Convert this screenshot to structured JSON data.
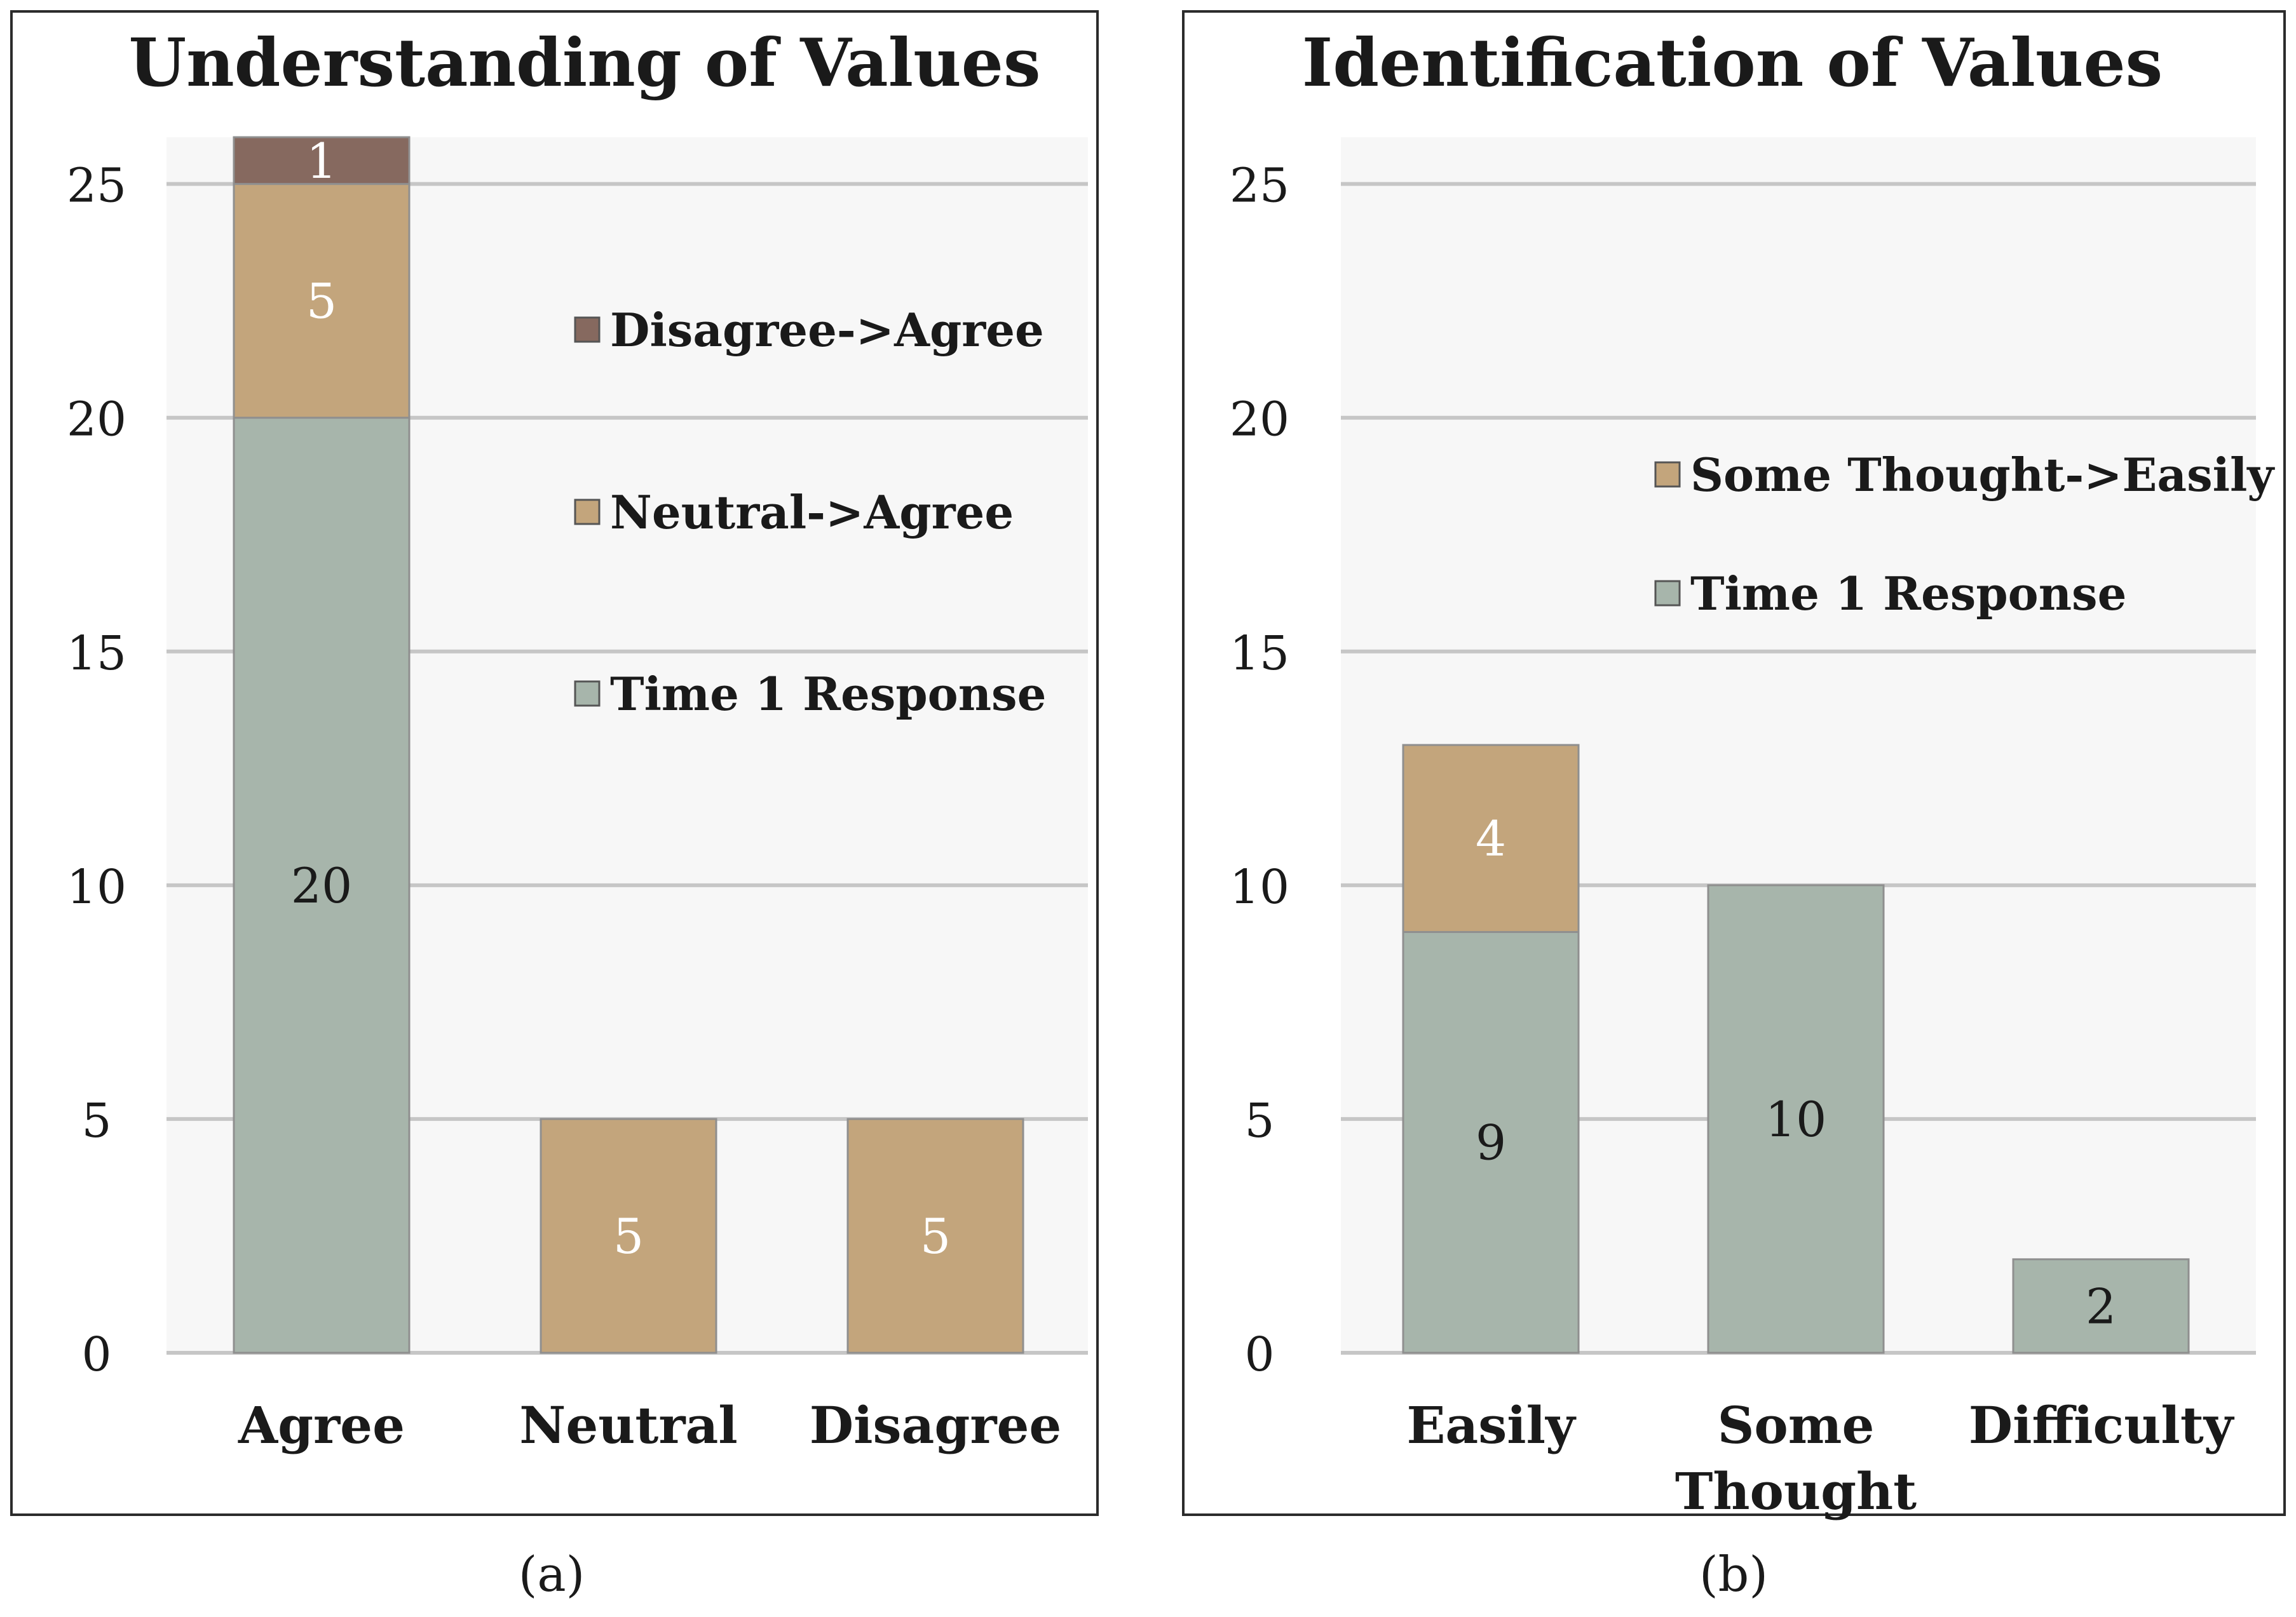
{
  "figure": {
    "panel_labels": [
      "(a)",
      "(b)"
    ]
  },
  "chart_data": [
    {
      "type": "bar",
      "stacked": true,
      "title": "Understanding of Values",
      "categories": [
        "Agree",
        "Neutral",
        "Disagree"
      ],
      "series": [
        {
          "name": "Time 1 Response",
          "values": [
            20,
            0,
            0
          ],
          "color": "#a7b5ab"
        },
        {
          "name": "Neutral->Agree",
          "values": [
            5,
            5,
            5
          ],
          "color": "#c3a57c"
        },
        {
          "name": "Disagree->Agree",
          "values": [
            1,
            0,
            0
          ],
          "color": "#86695f"
        }
      ],
      "legend_order": [
        "Disagree->Agree",
        "Neutral->Agree",
        "Time 1 Response"
      ],
      "legend_position": "right",
      "ylim": [
        0,
        26
      ],
      "yticks": [
        0,
        5,
        10,
        15,
        20,
        25
      ],
      "grid": true,
      "xlabel": "",
      "ylabel": ""
    },
    {
      "type": "bar",
      "stacked": true,
      "title": "Identification of Values",
      "categories": [
        "Easily",
        "Some Thought",
        "Difficulty"
      ],
      "series": [
        {
          "name": "Time 1 Response",
          "values": [
            9,
            10,
            2
          ],
          "color": "#a7b5ab"
        },
        {
          "name": "Some Thought->Easily",
          "values": [
            4,
            0,
            0
          ],
          "color": "#c3a57c"
        }
      ],
      "legend_order": [
        "Some Thought->Easily",
        "Time 1 Response"
      ],
      "legend_position": "right",
      "ylim": [
        0,
        26
      ],
      "yticks": [
        0,
        5,
        10,
        15,
        20,
        25
      ],
      "grid": true,
      "xlabel": "",
      "ylabel": ""
    }
  ]
}
